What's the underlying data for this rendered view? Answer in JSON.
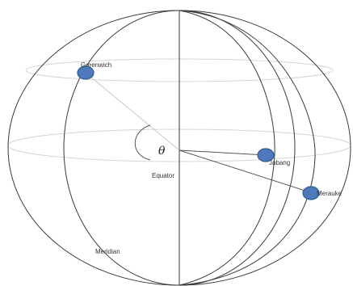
{
  "labels": {
    "theta": "θ",
    "equator": "Equator",
    "meridian": "Meridian"
  },
  "cities": [
    {
      "name": "Greenwich"
    },
    {
      "name": "Jabang"
    },
    {
      "name": "Merauke"
    }
  ],
  "colors": {
    "city_dot": "#4f79bd",
    "lines": "#3a3a3a",
    "latitude_lines": "#d6d6d6"
  }
}
